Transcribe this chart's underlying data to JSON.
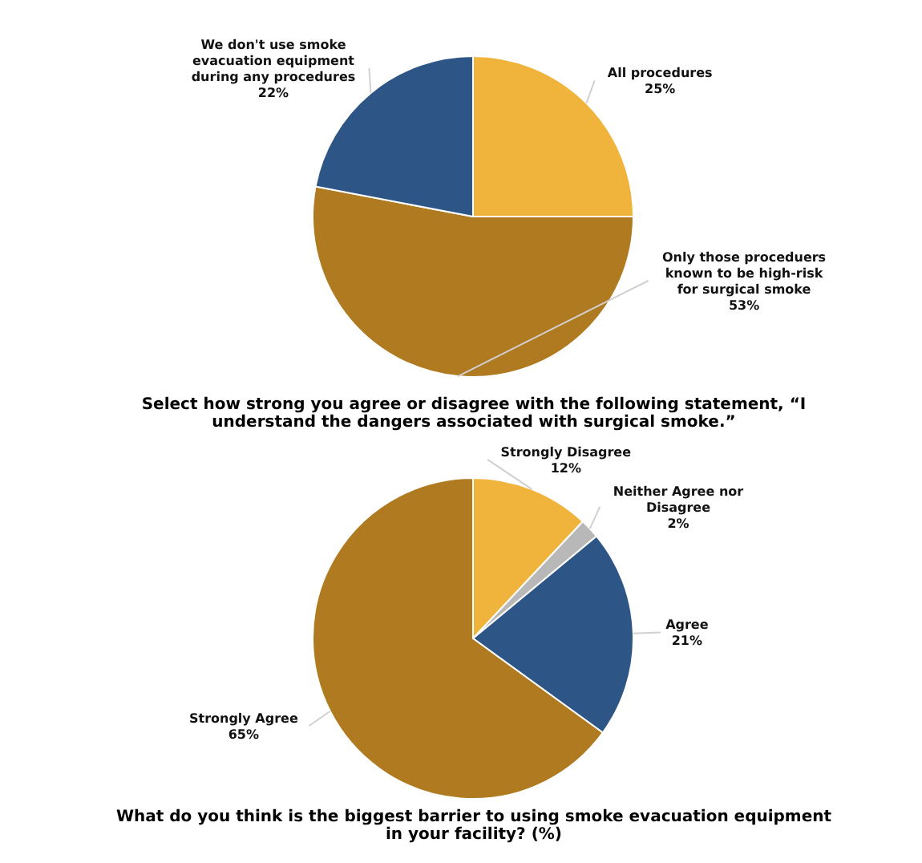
{
  "chart_data": [
    {
      "type": "pie",
      "categories": [
        "All procedures",
        "Only those proceduers known to be high-risk for surgical smoke",
        "We don't use smoke evacuation equipment during any procedures"
      ],
      "values": [
        25,
        53,
        22
      ],
      "colors": [
        "#f0b43c",
        "#b07a20",
        "#2d5586"
      ],
      "value_labels": [
        "25%",
        "53%",
        "22%"
      ]
    },
    {
      "type": "pie",
      "title": "Select how strong you agree or disagree with the following statement, “I understand the dangers associated with surgical smoke.”",
      "categories": [
        "Strongly Disagree",
        "Neither Agree nor Disagree",
        "Agree",
        "Strongly Agree"
      ],
      "values": [
        12,
        2,
        21,
        65
      ],
      "colors": [
        "#f0b43c",
        "#b8b8b8",
        "#2d5586",
        "#b07a20"
      ],
      "value_labels": [
        "12%",
        "2%",
        "21%",
        "65%"
      ],
      "annotations": [
        "What do you think is the biggest barrier to using smoke evacuation equipment in your facility? (%)"
      ]
    }
  ]
}
